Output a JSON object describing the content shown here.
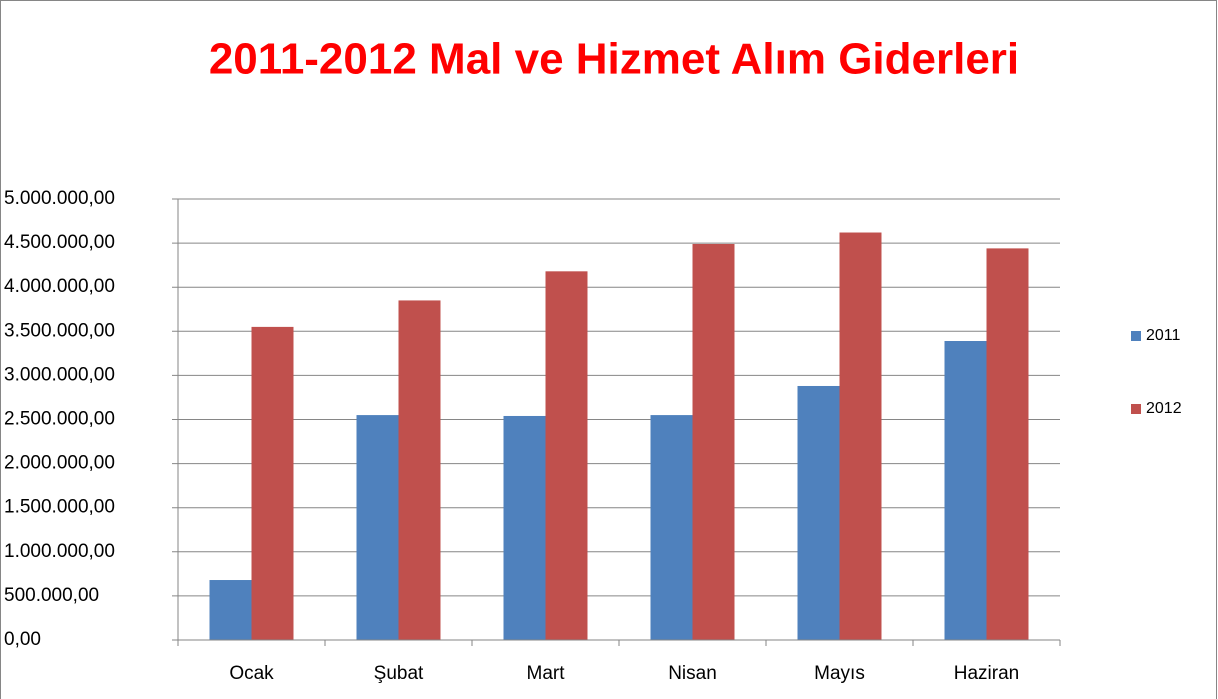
{
  "chart_data": {
    "type": "bar",
    "title": "2011-2012 Mal ve Hizmet Alım Giderleri",
    "categories": [
      "Ocak",
      "Şubat",
      "Mart",
      "Nisan",
      "Mayıs",
      "Haziran"
    ],
    "series": [
      {
        "name": "2011",
        "color": "#4f81bd",
        "values": [
          680000,
          2550000,
          2540000,
          2550000,
          2880000,
          3390000
        ]
      },
      {
        "name": "2012",
        "color": "#c0504d",
        "values": [
          3550000,
          3850000,
          4180000,
          4490000,
          4620000,
          4440000
        ]
      }
    ],
    "ylim": [
      0,
      5000000
    ],
    "yticks": [
      {
        "value": 0,
        "label": "0,00"
      },
      {
        "value": 500000,
        "label": "500.000,00"
      },
      {
        "value": 1000000,
        "label": "1.000.000,00"
      },
      {
        "value": 1500000,
        "label": "1.500.000,00"
      },
      {
        "value": 2000000,
        "label": "2.000.000,00"
      },
      {
        "value": 2500000,
        "label": "2.500.000,00"
      },
      {
        "value": 3000000,
        "label": "3.000.000,00"
      },
      {
        "value": 3500000,
        "label": "3.500.000,00"
      },
      {
        "value": 4000000,
        "label": "4.000.000,00"
      },
      {
        "value": 4500000,
        "label": "4.500.000,00"
      },
      {
        "value": 5000000,
        "label": "5.000.000,00"
      }
    ],
    "grid": true,
    "legend": "right"
  }
}
